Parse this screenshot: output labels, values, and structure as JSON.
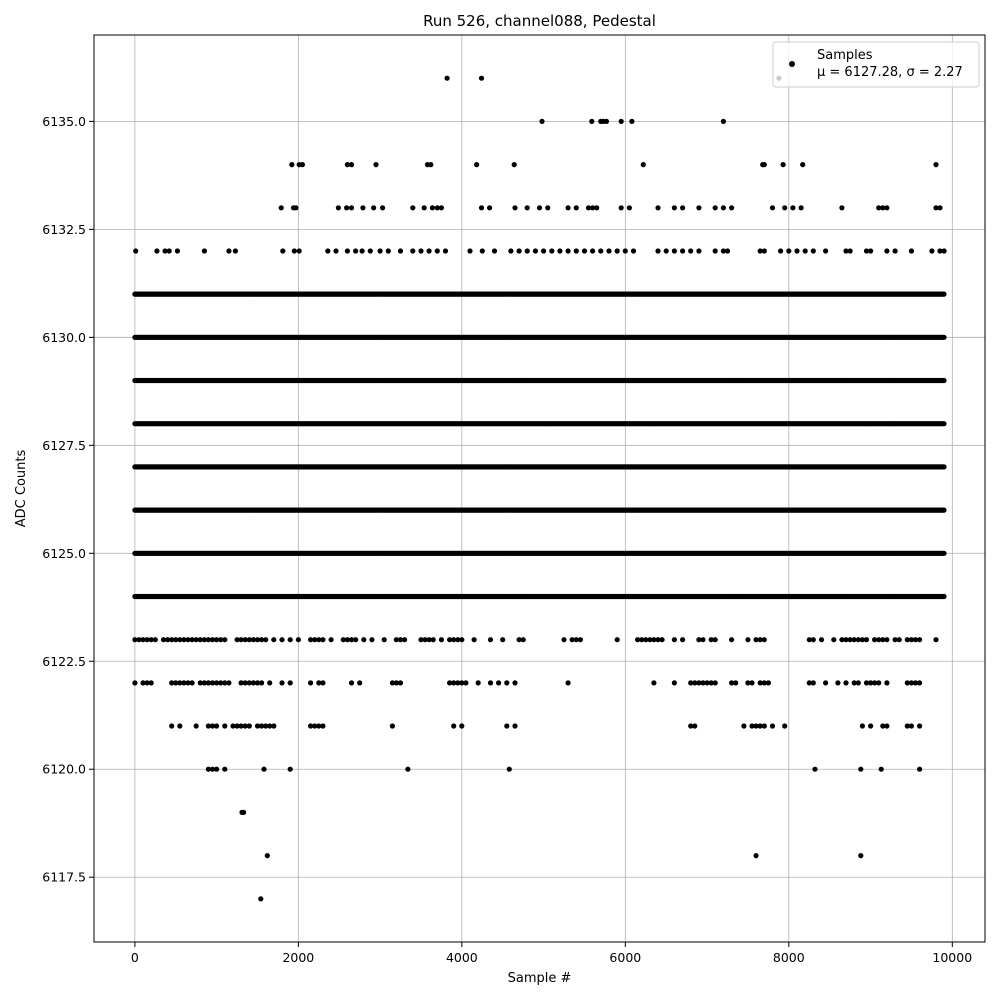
{
  "chart_data": {
    "type": "scatter",
    "title": "Run 526, channel088, Pedestal",
    "xlabel": "Sample #",
    "ylabel": "ADC Counts",
    "xlim": [
      -500,
      10400
    ],
    "ylim": [
      6116.0,
      6137.0
    ],
    "x_ticks": [
      0,
      2000,
      4000,
      6000,
      8000,
      10000
    ],
    "x_tick_labels": [
      "0",
      "2000",
      "4000",
      "6000",
      "8000",
      "10000"
    ],
    "y_ticks": [
      6117.5,
      6120.0,
      6122.5,
      6125.0,
      6127.5,
      6130.0,
      6132.5,
      6135.0
    ],
    "y_tick_labels": [
      "6117.5",
      "6120.0",
      "6122.5",
      "6125.0",
      "6127.5",
      "6130.0",
      "6132.5",
      "6135.0"
    ],
    "grid": true,
    "legend_position": "top-right",
    "marker_color": "#000000",
    "series": [
      {
        "name": "Samples",
        "legend_stats": "μ = 6127.28, σ = 2.27",
        "levels": [
          {
            "y": 6124,
            "runs": [
              [
                0,
                9910
              ]
            ]
          },
          {
            "y": 6125,
            "runs": [
              [
                0,
                9910
              ]
            ]
          },
          {
            "y": 6126,
            "runs": [
              [
                0,
                9910
              ]
            ]
          },
          {
            "y": 6127,
            "runs": [
              [
                0,
                9910
              ]
            ]
          },
          {
            "y": 6128,
            "runs": [
              [
                0,
                9910
              ]
            ]
          },
          {
            "y": 6129,
            "runs": [
              [
                0,
                9910
              ]
            ]
          },
          {
            "y": 6130,
            "runs": [
              [
                0,
                9910
              ]
            ]
          },
          {
            "y": 6131,
            "runs": [
              [
                0,
                9910
              ]
            ]
          },
          {
            "y": 6132,
            "points": [
              10,
              270,
              370,
              420,
              520,
              850,
              1150,
              1230,
              1810,
              1950,
              2010,
              2360,
              2460,
              2600,
              2700,
              2780,
              2880,
              3000,
              3100,
              3250,
              3400,
              3500,
              3600,
              3700,
              3800,
              4100,
              4250,
              4400,
              4600,
              4700,
              4800,
              4900,
              5000,
              5100,
              5200,
              5300,
              5400,
              5500,
              5600,
              5700,
              5800,
              5900,
              6000,
              6100,
              6400,
              6500,
              6600,
              6700,
              6800,
              6900,
              7100,
              7200,
              7250,
              7650,
              7700,
              7900,
              8000,
              8100,
              8200,
              8300,
              8450,
              8700,
              8750,
              8950,
              9000,
              9200,
              9300,
              9500,
              9750,
              9850,
              9900
            ]
          },
          {
            "y": 6133,
            "points": [
              1790,
              1940,
              1970,
              2490,
              2590,
              2650,
              2790,
              2920,
              3030,
              3400,
              3540,
              3640,
              3700,
              3750,
              4240,
              4340,
              4650,
              4800,
              4950,
              5050,
              5300,
              5400,
              5550,
              5600,
              5650,
              5950,
              6050,
              6400,
              6600,
              6700,
              6900,
              7100,
              7200,
              7300,
              7800,
              7950,
              8050,
              8150,
              8650,
              9100,
              9150,
              9200,
              9800,
              9850
            ]
          },
          {
            "y": 6134,
            "points": [
              1920,
              2010,
              2050,
              2600,
              2650,
              2950,
              3580,
              3620,
              4180,
              4640,
              6220,
              7680,
              7700,
              7930,
              8170,
              9800
            ]
          },
          {
            "y": 6135,
            "points": [
              4980,
              5590,
              5700,
              5730,
              5770,
              5950,
              6080,
              7200
            ]
          },
          {
            "y": 6136,
            "points": [
              3820,
              4240,
              7880
            ]
          },
          {
            "y": 6123,
            "points": [
              0,
              50,
              100,
              150,
              200,
              250,
              350,
              400,
              450,
              500,
              550,
              600,
              650,
              700,
              750,
              800,
              850,
              900,
              950,
              1000,
              1050,
              1100,
              1250,
              1300,
              1350,
              1400,
              1450,
              1500,
              1550,
              1600,
              1700,
              1800,
              1900,
              2000,
              2150,
              2200,
              2250,
              2300,
              2400,
              2550,
              2600,
              2650,
              2700,
              2800,
              2900,
              3050,
              3200,
              3250,
              3300,
              3500,
              3550,
              3600,
              3650,
              3750,
              3850,
              3900,
              3950,
              4000,
              4150,
              4350,
              4500,
              4700,
              4750,
              5250,
              5350,
              5400,
              5450,
              5900,
              6150,
              6200,
              6250,
              6300,
              6350,
              6400,
              6450,
              6600,
              6700,
              6900,
              6950,
              7050,
              7100,
              7300,
              7500,
              7600,
              7650,
              7700,
              8250,
              8300,
              8400,
              8550,
              8650,
              8700,
              8750,
              8800,
              8850,
              8900,
              8950,
              9050,
              9100,
              9150,
              9200,
              9300,
              9350,
              9450,
              9500,
              9550,
              9600,
              9800
            ]
          },
          {
            "y": 6122,
            "points": [
              0,
              100,
              150,
              200,
              450,
              500,
              550,
              600,
              650,
              700,
              800,
              850,
              900,
              950,
              1000,
              1050,
              1100,
              1150,
              1300,
              1350,
              1400,
              1450,
              1500,
              1550,
              1650,
              1800,
              1900,
              2150,
              2250,
              2300,
              2650,
              2750,
              3150,
              3200,
              3250,
              3850,
              3900,
              3950,
              4000,
              4050,
              4200,
              4350,
              4450,
              4550,
              4650,
              5300,
              6350,
              6600,
              6800,
              6850,
              6900,
              6950,
              7000,
              7050,
              7100,
              7300,
              7350,
              7500,
              7550,
              7650,
              7700,
              7750,
              8250,
              8300,
              8450,
              8600,
              8700,
              8800,
              8850,
              8950,
              9000,
              9050,
              9100,
              9200,
              9450,
              9500,
              9550,
              9600
            ]
          },
          {
            "y": 6121,
            "points": [
              450,
              550,
              750,
              900,
              950,
              1000,
              1100,
              1200,
              1250,
              1300,
              1350,
              1400,
              1500,
              1550,
              1600,
              1650,
              1700,
              2150,
              2200,
              2250,
              2300,
              3150,
              3900,
              4000,
              4550,
              4650,
              6800,
              6850,
              7450,
              7550,
              7600,
              7650,
              7700,
              7800,
              7950,
              8900,
              9000,
              9150,
              9200,
              9450,
              9500,
              9600
            ]
          },
          {
            "y": 6120,
            "points": [
              900,
              950,
              1000,
              1100,
              1580,
              1900,
              3340,
              4580,
              8320,
              8880,
              9130,
              9600
            ]
          },
          {
            "y": 6119,
            "points": [
              1310,
              1330
            ]
          },
          {
            "y": 6118,
            "points": [
              1620,
              7600,
              8880
            ]
          },
          {
            "y": 6117,
            "points": [
              1540
            ]
          }
        ]
      }
    ]
  }
}
